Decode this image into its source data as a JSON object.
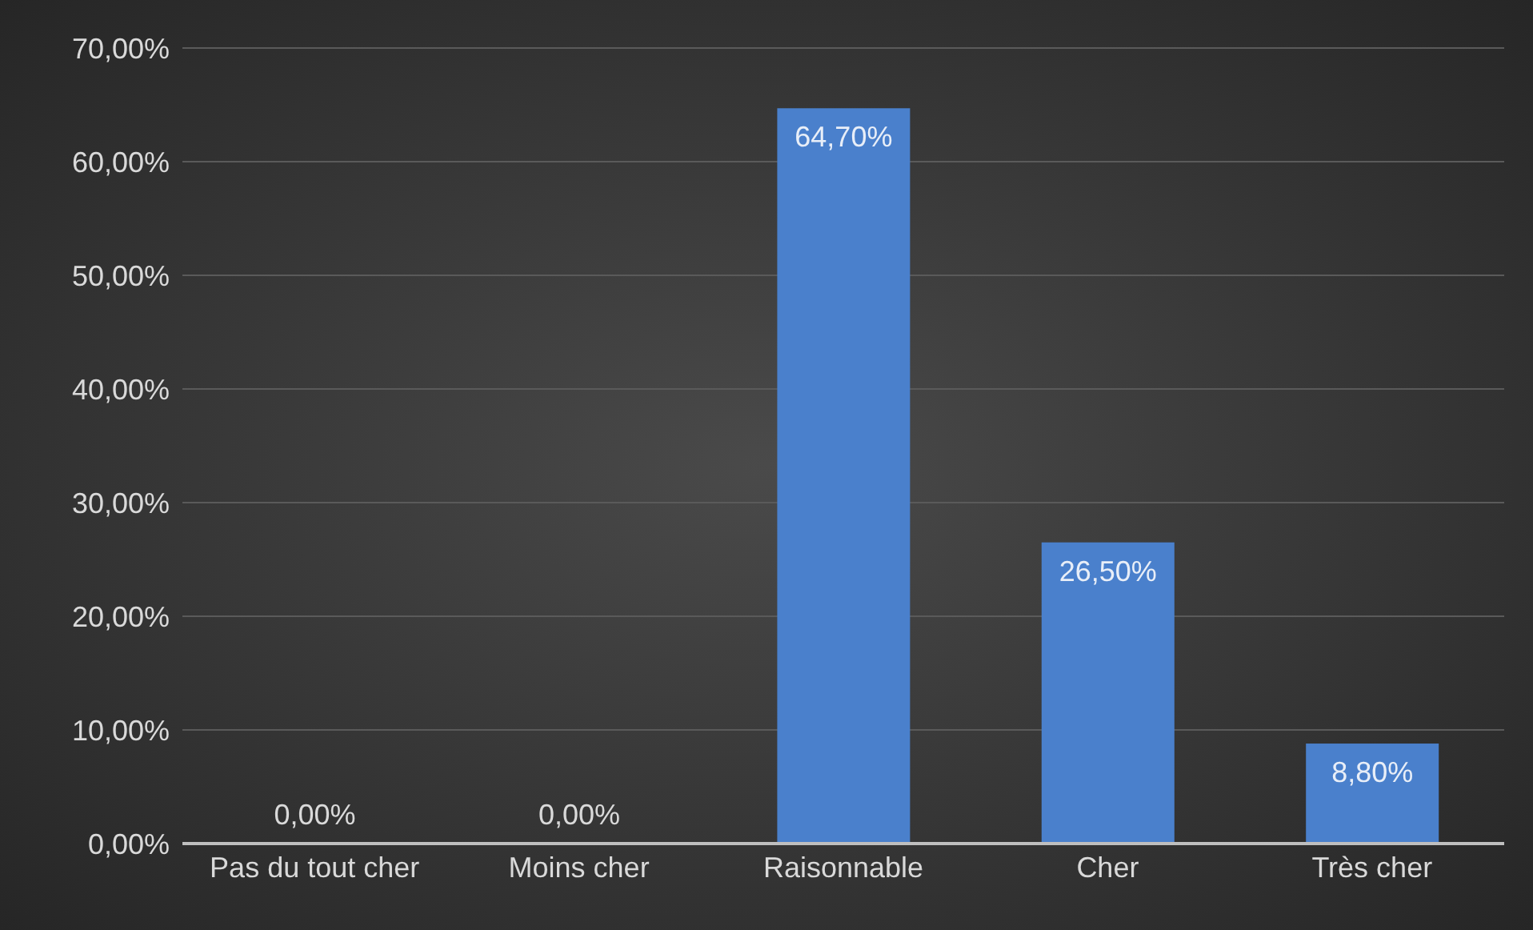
{
  "chart_data": {
    "type": "bar",
    "categories": [
      "Pas du tout cher",
      "Moins cher",
      "Raisonnable",
      "Cher",
      "Très cher"
    ],
    "values": [
      0,
      0,
      64.7,
      26.5,
      8.8
    ],
    "value_labels": [
      "0,00%",
      "0,00%",
      "64,70%",
      "26,50%",
      "8,80%"
    ],
    "color": "#4a80cc",
    "ylim": [
      0,
      70
    ],
    "yticks": [
      {
        "value": 0,
        "label": "0,00%"
      },
      {
        "value": 10,
        "label": "10,00%"
      },
      {
        "value": 20,
        "label": "20,00%"
      },
      {
        "value": 30,
        "label": "30,00%"
      },
      {
        "value": 40,
        "label": "40,00%"
      },
      {
        "value": 50,
        "label": "50,00%"
      },
      {
        "value": 60,
        "label": "60,00%"
      },
      {
        "value": 70,
        "label": "70,00%"
      }
    ],
    "grid": "y"
  }
}
